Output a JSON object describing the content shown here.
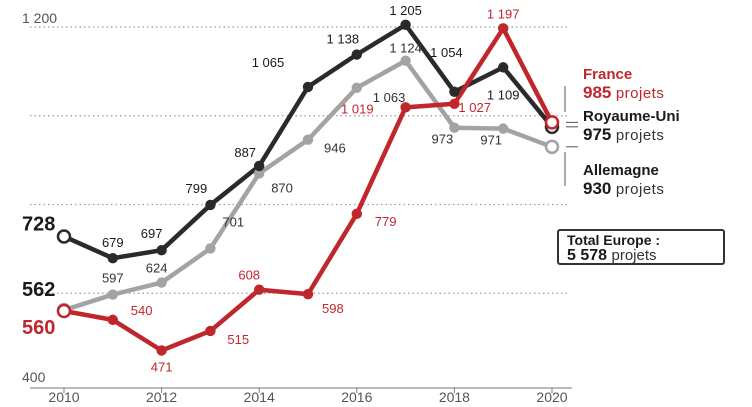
{
  "chart_data": {
    "type": "line",
    "x": [
      2010,
      2011,
      2012,
      2013,
      2014,
      2015,
      2016,
      2017,
      2018,
      2019,
      2020
    ],
    "ylim": [
      400,
      1200
    ],
    "y_ticks": [
      400,
      600,
      800,
      1000,
      1200
    ],
    "y_tick_labels": {
      "top": "1 200",
      "bottom": "400"
    },
    "x_tick_labels": [
      "2010",
      "2012",
      "2014",
      "2016",
      "2018",
      "2020"
    ],
    "grid": "dotted horizontal",
    "series": [
      {
        "key": "uk",
        "name": "Royaume-Uni",
        "color": "#2a2a2a",
        "values": [
          728,
          679,
          697,
          799,
          887,
          1065,
          1138,
          1205,
          1054,
          1109,
          975
        ],
        "point_labels": [
          "",
          "679",
          "697",
          "799",
          "887",
          "1 065",
          "1 138",
          "1 205",
          "1 054",
          "1 109",
          ""
        ]
      },
      {
        "key": "de",
        "name": "Allemagne",
        "color": "#a3a3a3",
        "values": [
          562,
          597,
          624,
          701,
          870,
          946,
          1063,
          1124,
          973,
          971,
          930
        ],
        "point_labels": [
          "",
          "597",
          "624",
          "701",
          "870",
          "946",
          "1 063",
          "1 124",
          "973",
          "971",
          ""
        ]
      },
      {
        "key": "fr",
        "name": "France",
        "color": "#c0272d",
        "values": [
          560,
          540,
          471,
          515,
          608,
          598,
          779,
          1019,
          1027,
          1197,
          985
        ],
        "point_labels": [
          "",
          "540",
          "471",
          "515",
          "608",
          "598",
          "779",
          "1 019",
          "1 027",
          "1 197",
          ""
        ]
      }
    ],
    "start_labels": {
      "uk": "728",
      "de": "562",
      "fr": "560"
    },
    "legend": [
      {
        "key": "fr",
        "name": "France",
        "value": "985",
        "unit": "projets",
        "color": "#c0272d"
      },
      {
        "key": "uk",
        "name": "Royaume-Uni",
        "value": "975",
        "unit": "projets",
        "color": "#1a1a1a"
      },
      {
        "key": "de",
        "name": "Allemagne",
        "value": "930",
        "unit": "projets",
        "color": "#1a1a1a"
      }
    ],
    "total": {
      "label": "Total Europe :",
      "value": "5 578",
      "unit": "projets"
    }
  }
}
